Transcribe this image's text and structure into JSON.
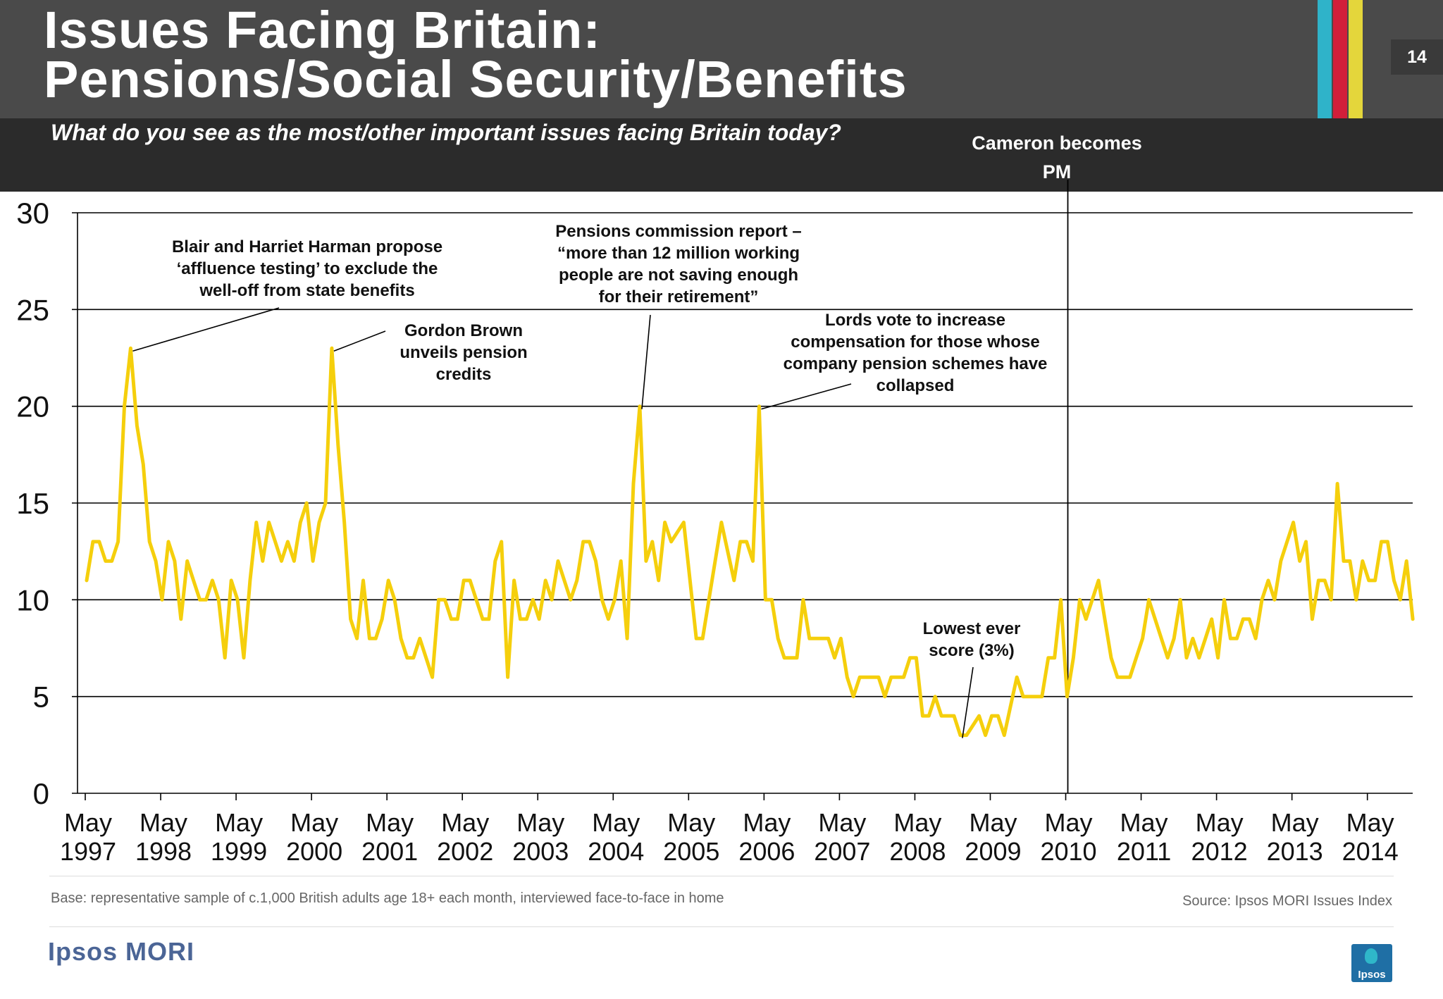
{
  "header": {
    "title_line1": "Issues Facing Britain:",
    "title_line2": "Pensions/Social Security/Benefits",
    "subtitle": "What do you see as the most/other important issues facing Britain today?",
    "page_number": "14",
    "stripe_colors": [
      "#2fb3c9",
      "#d21f3a",
      "#e4d63b"
    ]
  },
  "footer": {
    "base_note": "Base: representative sample of c.1,000 British adults age 18+ each month, interviewed face-to-face in home",
    "source_note": "Source: Ipsos MORI Issues Index",
    "brand": "Ipsos MORI",
    "badge_text": "Ipsos"
  },
  "colors": {
    "line": "#f5cf0c",
    "grid": "#000000",
    "header": "#4a4a4a",
    "subbar": "#2b2b2b"
  },
  "chart_data": {
    "type": "line",
    "title": "Issues Facing Britain: Pensions/Social Security/Benefits",
    "ylabel": "",
    "xlabel": "",
    "ylim": [
      0,
      30
    ],
    "yticks": [
      "0",
      "5",
      "10",
      "15",
      "20",
      "25",
      "30"
    ],
    "x_start": "May 1997",
    "x_interval": "month",
    "x_tick_labels": [
      {
        "month": "May",
        "year": "1997"
      },
      {
        "month": "May",
        "year": "1998"
      },
      {
        "month": "May",
        "year": "1999"
      },
      {
        "month": "May",
        "year": "2000"
      },
      {
        "month": "May",
        "year": "2001"
      },
      {
        "month": "May",
        "year": "2002"
      },
      {
        "month": "May",
        "year": "2003"
      },
      {
        "month": "May",
        "year": "2004"
      },
      {
        "month": "May",
        "year": "2005"
      },
      {
        "month": "May",
        "year": "2006"
      },
      {
        "month": "May",
        "year": "2007"
      },
      {
        "month": "May",
        "year": "2008"
      },
      {
        "month": "May",
        "year": "2009"
      },
      {
        "month": "May",
        "year": "2010"
      },
      {
        "month": "May",
        "year": "2011"
      },
      {
        "month": "May",
        "year": "2012"
      },
      {
        "month": "May",
        "year": "2013"
      },
      {
        "month": "May",
        "year": "2014"
      }
    ],
    "series": [
      {
        "name": "Pensions/Social Security/Benefits",
        "values": [
          11,
          13,
          13,
          12,
          12,
          13,
          20,
          23,
          19,
          17,
          13,
          12,
          10,
          13,
          12,
          9,
          12,
          11,
          10,
          10,
          11,
          10,
          7,
          11,
          10,
          7,
          11,
          14,
          12,
          14,
          13,
          12,
          13,
          12,
          14,
          15,
          12,
          14,
          15,
          23,
          18,
          14,
          9,
          8,
          11,
          8,
          8,
          9,
          11,
          10,
          8,
          7,
          7,
          8,
          7,
          6,
          10,
          10,
          9,
          9,
          11,
          11,
          10,
          9,
          9,
          12,
          13,
          6,
          11,
          9,
          9,
          10,
          9,
          11,
          10,
          12,
          11,
          10,
          11,
          13,
          13,
          12,
          10,
          9,
          10,
          12,
          8,
          16,
          20,
          12,
          13,
          11,
          14,
          13,
          13.5,
          14,
          11,
          8,
          8,
          10,
          12,
          14,
          12.5,
          11,
          13,
          13,
          12,
          20,
          10,
          10,
          8,
          7,
          7,
          7,
          10,
          8,
          8,
          8,
          8,
          7,
          8,
          6,
          5,
          6,
          6,
          6,
          6,
          5,
          6,
          6,
          6,
          7,
          7,
          4,
          4,
          5,
          4,
          4,
          4,
          3,
          3,
          3.5,
          4,
          3,
          4,
          4,
          3,
          4.5,
          6,
          5,
          5,
          5,
          5,
          7,
          7,
          10,
          5,
          7,
          10,
          9,
          10,
          11,
          9,
          7,
          6,
          6,
          6,
          7,
          8,
          10,
          9,
          8,
          7,
          8,
          10,
          7,
          8,
          7,
          8,
          9,
          7,
          10,
          8,
          8,
          9,
          9,
          8,
          10,
          11,
          10,
          12,
          13,
          14,
          12,
          13,
          9,
          11,
          11,
          10,
          16,
          12,
          12,
          10,
          12,
          11,
          11,
          13,
          13,
          11,
          10,
          12,
          9
        ]
      }
    ],
    "annotations": [
      {
        "id": "blair",
        "lines": [
          "Blair and Harriet Harman propose",
          "‘affluence testing’ to exclude the",
          "well-off from state benefits"
        ]
      },
      {
        "id": "brown",
        "lines": [
          "Gordon Brown",
          "unveils pension",
          "credits"
        ]
      },
      {
        "id": "commission",
        "lines": [
          "Pensions commission report –",
          "“more than 12 million working",
          "people are not saving enough",
          "for their retirement”"
        ]
      },
      {
        "id": "lords",
        "lines": [
          "Lords vote to increase",
          "compensation for those whose",
          "company pension schemes have",
          "collapsed"
        ]
      },
      {
        "id": "lowest",
        "lines": [
          "Lowest ever",
          "score (3%)"
        ]
      },
      {
        "id": "cameron",
        "lines": [
          "Cameron becomes",
          "PM"
        ]
      }
    ]
  }
}
